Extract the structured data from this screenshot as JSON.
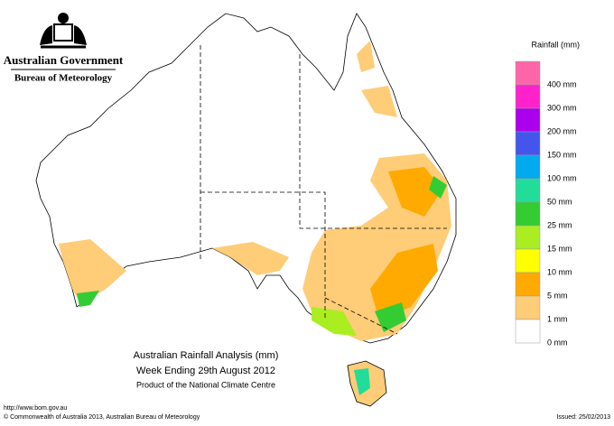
{
  "header": {
    "government": "Australian Government",
    "bureau": "Bureau of Meteorology"
  },
  "legend": {
    "title": "Rainfall (mm)",
    "colors": [
      "#ff66aa",
      "#ff22cc",
      "#aa00ee",
      "#4455ee",
      "#00aaee",
      "#22dd99",
      "#33cc33",
      "#aaee22",
      "#ffff00",
      "#ffaa00",
      "#ffcc77",
      "#ffffff"
    ],
    "labels": [
      "400 mm",
      "300 mm",
      "200 mm",
      "150 mm",
      "100 mm",
      "50 mm",
      "25 mm",
      "15 mm",
      "10 mm",
      "5 mm",
      "1 mm",
      "0 mm"
    ]
  },
  "map": {
    "title": "Australian Rainfall Analysis (mm)",
    "subtitle": "Week Ending 29th August 2012",
    "credit": "Product of the National Climate Centre"
  },
  "footer": {
    "url": "http://www.bom.gov.au",
    "copyright": "© Commonwealth of Australia 2013, Australian Bureau of Meteorology",
    "issued": "Issued: 25/02/2013"
  }
}
